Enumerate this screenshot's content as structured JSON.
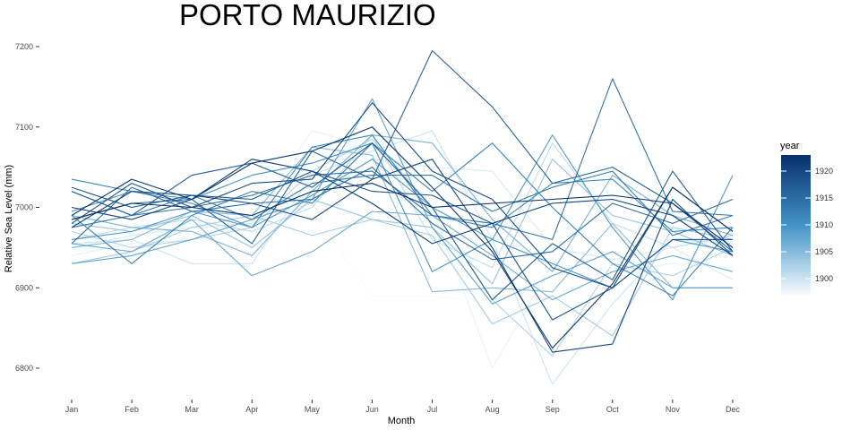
{
  "chart_data": {
    "type": "line",
    "title": "PORTO MAURIZIO",
    "xlabel": "Month",
    "ylabel": "Relative Sea Level (mm)",
    "categories": [
      "Jan",
      "Feb",
      "Mar",
      "Apr",
      "May",
      "Jun",
      "Jul",
      "Aug",
      "Sep",
      "Oct",
      "Nov",
      "Dec"
    ],
    "yticks": [
      6800,
      6900,
      7000,
      7100,
      7200
    ],
    "ylim": [
      6760,
      7210
    ],
    "grid": false,
    "legend": {
      "title": "year",
      "placement": "right",
      "ticks": [
        1900,
        1905,
        1910,
        1915,
        1920
      ],
      "range": [
        1897,
        1923
      ],
      "color_low": "#f7fbff",
      "color_high": "#08306b"
    },
    "series": [
      {
        "year": 1897,
        "values": [
          6945,
          6950,
          6965,
          6975,
          6995,
          6890,
          6890,
          6880,
          6900,
          6905,
          6955,
          6945
        ]
      },
      {
        "year": 1898,
        "values": [
          6940,
          6955,
          6960,
          6990,
          7095,
          7075,
          7000,
          6800,
          6930,
          6920,
          6930,
          6925
        ]
      },
      {
        "year": 1899,
        "values": [
          6950,
          6965,
          6975,
          6980,
          7005,
          7060,
          7050,
          7045,
          6950,
          6935,
          6950,
          6910
        ]
      },
      {
        "year": 1900,
        "values": [
          6955,
          6960,
          6930,
          6930,
          7040,
          7070,
          7095,
          6960,
          6780,
          6880,
          6960,
          6955
        ]
      },
      {
        "year": 1901,
        "values": [
          6960,
          6975,
          6985,
          6970,
          7000,
          7090,
          6960,
          6925,
          7080,
          6980,
          6950,
          6965
        ]
      },
      {
        "year": 1902,
        "values": [
          6970,
          6950,
          6960,
          6975,
          7045,
          7085,
          7000,
          6885,
          6815,
          6930,
          6915,
          6950
        ]
      },
      {
        "year": 1903,
        "values": [
          6930,
          6945,
          6975,
          6990,
          6965,
          6985,
          6965,
          6855,
          6890,
          6840,
          6975,
          6960
        ]
      },
      {
        "year": 1904,
        "values": [
          6980,
          6970,
          6990,
          6950,
          7010,
          6985,
          6975,
          6905,
          7060,
          6990,
          6970,
          6940
        ]
      },
      {
        "year": 1905,
        "values": [
          6950,
          6960,
          6995,
          6990,
          7075,
          7065,
          6895,
          6900,
          6895,
          6980,
          6900,
          6900
        ]
      },
      {
        "year": 1906,
        "values": [
          6990,
          6975,
          6970,
          6940,
          7020,
          7090,
          7080,
          6985,
          6920,
          7040,
          6990,
          6965
        ]
      },
      {
        "year": 1907,
        "values": [
          6955,
          6945,
          6985,
          6915,
          6945,
          6995,
          6990,
          6940,
          6885,
          6920,
          6940,
          6920
        ]
      },
      {
        "year": 1908,
        "values": [
          6930,
          6940,
          6960,
          6985,
          7010,
          7135,
          6975,
          6880,
          6915,
          6945,
          6900,
          6900
        ]
      },
      {
        "year": 1909,
        "values": [
          6960,
          6970,
          6995,
          6975,
          7015,
          7060,
          7000,
          6960,
          7090,
          6975,
          6885,
          7040
        ]
      },
      {
        "year": 1910,
        "values": [
          6995,
          7020,
          7010,
          7040,
          7055,
          7080,
          6920,
          6960,
          6930,
          6900,
          6960,
          6945
        ]
      },
      {
        "year": 1911,
        "values": [
          7035,
          7020,
          7005,
          6975,
          7075,
          7090,
          6990,
          6975,
          7030,
          7035,
          6970,
          6975
        ]
      },
      {
        "year": 1912,
        "values": [
          6990,
          6930,
          6990,
          7020,
          7005,
          7080,
          7020,
          7080,
          7000,
          6930,
          6890,
          6975
        ]
      },
      {
        "year": 1913,
        "values": [
          6975,
          6990,
          7015,
          6985,
          7030,
          7040,
          7040,
          6995,
          7025,
          7045,
          6965,
          6990
        ]
      },
      {
        "year": 1914,
        "values": [
          7020,
          6990,
          7000,
          7015,
          7040,
          7045,
          6990,
          6980,
          6960,
          7160,
          6995,
          6990
        ]
      },
      {
        "year": 1915,
        "values": [
          6955,
          7025,
          6995,
          7005,
          7010,
          7050,
          6980,
          6935,
          6945,
          7005,
          6980,
          7010
        ]
      },
      {
        "year": 1916,
        "values": [
          6985,
          7005,
          7010,
          6955,
          7070,
          7035,
          7195,
          7125,
          7030,
          7050,
          7005,
          6945
        ]
      },
      {
        "year": 1917,
        "values": [
          7020,
          6990,
          7040,
          7055,
          7025,
          7080,
          7000,
          6885,
          6955,
          6910,
          7045,
          6945
        ]
      },
      {
        "year": 1918,
        "values": [
          7025,
          7000,
          7015,
          7010,
          7045,
          7020,
          7015,
          6980,
          6860,
          6900,
          6960,
          6960
        ]
      },
      {
        "year": 1919,
        "values": [
          6980,
          7030,
          7000,
          7030,
          7035,
          7130,
          7045,
          7010,
          6925,
          6900,
          7025,
          6970
        ]
      },
      {
        "year": 1920,
        "values": [
          6975,
          7020,
          7015,
          7005,
          6985,
          7035,
          7060,
          6950,
          6820,
          6830,
          7010,
          6940
        ]
      },
      {
        "year": 1921,
        "values": [
          7000,
          6985,
          7010,
          7060,
          7045,
          7005,
          6955,
          6980,
          7005,
          7010,
          6990,
          6940
        ]
      },
      {
        "year": 1922,
        "values": [
          6990,
          7035,
          7010,
          7055,
          7070,
          7100,
          7025,
          6945,
          6825,
          6905,
          7025,
          6970
        ]
      },
      {
        "year": 1923,
        "values": [
          6985,
          7005,
          7000,
          6990,
          7020,
          7030,
          7000,
          7005,
          7010,
          7015,
          7005,
          6950
        ]
      }
    ]
  }
}
